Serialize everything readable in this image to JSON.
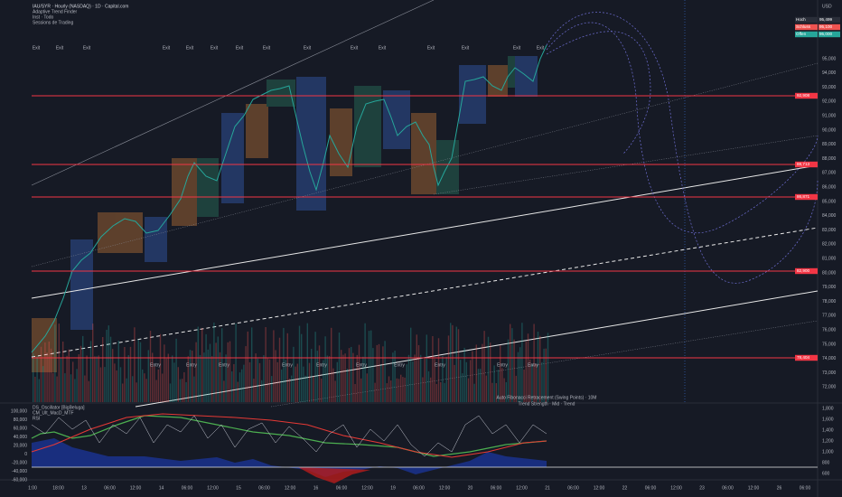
{
  "header": {
    "symbol": "IAU/SYR · Hourly (NASDAQ) · 1D · Capital.com",
    "indicators": [
      "Adaptive Trend Finder",
      "Inst · Todo",
      "Sessions de Trading"
    ]
  },
  "price_axis": {
    "currency": "USD",
    "ticks": [
      "95,000",
      "94,000",
      "93,000",
      "92,000",
      "91,000",
      "90,000",
      "89,000",
      "88,000",
      "87,000",
      "86,000",
      "85,000",
      "84,000",
      "83,000",
      "82,000",
      "81,000",
      "80,000",
      "79,000",
      "78,000",
      "77,000",
      "76,000",
      "75,000",
      "74,000",
      "73,000",
      "72,000"
    ],
    "badges": [
      {
        "label": "Hoch",
        "value": "95,499"
      },
      {
        "label": "Schluss",
        "value": "95,100"
      },
      {
        "label": "Offen",
        "value": "95,000"
      }
    ]
  },
  "levels": [
    "92,908",
    "88,713",
    "86,871",
    "82,900",
    "78,404"
  ],
  "markers": {
    "exit": "Exit",
    "entry": "Entry"
  },
  "oscillator": {
    "titles": [
      "DS_Oscillator [BigBeluga]",
      "CM_Ult_MacD_MTF",
      "RSI"
    ],
    "left_ticks": [
      "100,000",
      "80,000",
      "60,000",
      "40,000",
      "20,000",
      "0",
      "-20,000",
      "-40,000",
      "-60,000"
    ],
    "right_ticks": [
      "1,800",
      "1,600",
      "1,400",
      "1,200",
      "1,000",
      "800",
      "600"
    ]
  },
  "time_axis": [
    "1:00",
    "18:00",
    "13",
    "06:00",
    "12:00",
    "14",
    "06:00",
    "12:00",
    "15",
    "06:00",
    "12:00",
    "16",
    "06:00",
    "12:00",
    "19",
    "06:00",
    "12:00",
    "20",
    "06:00",
    "12:00",
    "21",
    "06:00",
    "12:00",
    "22",
    "06:00",
    "12:00",
    "23",
    "06:00",
    "12:00",
    "26",
    "06:00"
  ],
  "watermark": [
    "Auto Fibonacci Retracement (Swing Points) · 10M",
    "Trend Strength · Mid · Trend"
  ]
}
